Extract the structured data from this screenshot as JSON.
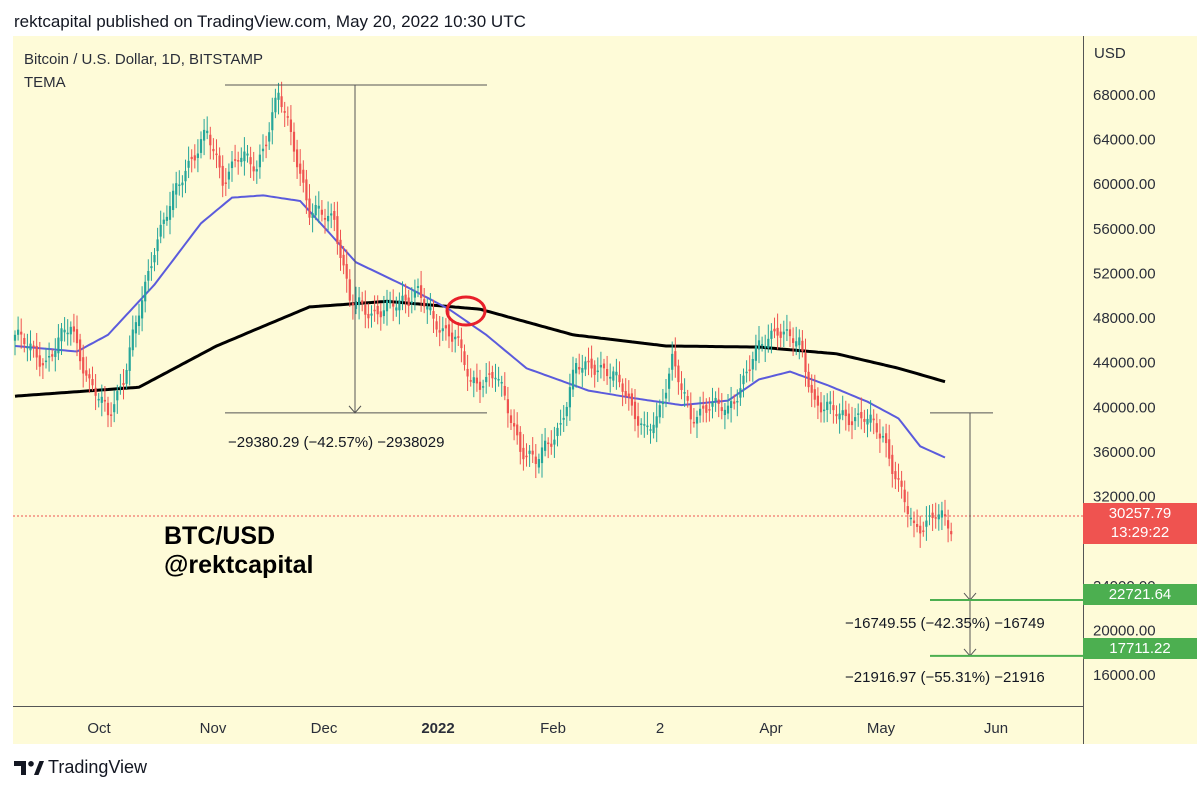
{
  "header": {
    "published": "rektcapital published on TradingView.com, May 20, 2022 10:30 UTC"
  },
  "chart": {
    "symbol": "Bitcoin / U.S. Dollar, 1D, BITSTAMP",
    "indicator": "TEMA",
    "currency": "USD",
    "watermark_line1": "BTC/USD",
    "watermark_line2": "@rektcapital",
    "current_price": "30257.79",
    "countdown": "13:29:22",
    "target1": "22721.64",
    "target2": "17711.22",
    "annotation_top": "−29380.29 (−42.57%) −2938029",
    "annotation_mid": "−16749.55 (−42.35%) −16749",
    "annotation_bottom": "−21916.97 (−55.31%) −21916"
  },
  "colors": {
    "background": "#fefbd8",
    "up": "#26a69a",
    "down": "#ef5350",
    "ema_fast": "#5b5bdc",
    "ema_slow": "#000000",
    "target": "#4caf50",
    "circle": "#e8202a"
  },
  "footer": {
    "brand": "TradingView"
  },
  "chart_data": {
    "type": "candlestick",
    "x_ticks": [
      "Oct",
      "Nov",
      "Dec",
      "2022",
      "Feb",
      "2",
      "Apr",
      "May",
      "Jun"
    ],
    "y_ticks": [
      "68000.00",
      "64000.00",
      "60000.00",
      "56000.00",
      "52000.00",
      "48000.00",
      "44000.00",
      "40000.00",
      "36000.00",
      "32000.00",
      "24000.00",
      "20000.00",
      "16000.00"
    ],
    "ylim": [
      14000,
      71000
    ],
    "price_path": [
      [
        0,
        46500
      ],
      [
        10,
        44000
      ],
      [
        18,
        47500
      ],
      [
        24,
        42000
      ],
      [
        30,
        39500
      ],
      [
        35,
        42500
      ],
      [
        45,
        54500
      ],
      [
        55,
        61500
      ],
      [
        62,
        64500
      ],
      [
        67,
        60500
      ],
      [
        72,
        62500
      ],
      [
        78,
        61500
      ],
      [
        85,
        68000
      ],
      [
        90,
        63500
      ],
      [
        95,
        57500
      ],
      [
        103,
        57000
      ],
      [
        108,
        49500
      ],
      [
        115,
        48500
      ],
      [
        122,
        49000
      ],
      [
        130,
        50500
      ],
      [
        135,
        47500
      ],
      [
        142,
        46500
      ],
      [
        147,
        42000
      ],
      [
        155,
        43000
      ],
      [
        163,
        36500
      ],
      [
        168,
        35000
      ],
      [
        176,
        38500
      ],
      [
        181,
        43500
      ],
      [
        186,
        44000
      ],
      [
        196,
        42000
      ],
      [
        203,
        37700
      ],
      [
        207,
        38700
      ],
      [
        212,
        44500
      ],
      [
        218,
        38800
      ],
      [
        224,
        40500
      ],
      [
        230,
        39500
      ],
      [
        238,
        44500
      ],
      [
        246,
        47200
      ],
      [
        253,
        45500
      ],
      [
        258,
        40500
      ],
      [
        266,
        39300
      ],
      [
        274,
        39000
      ],
      [
        280,
        37500
      ],
      [
        285,
        33000
      ],
      [
        290,
        29000
      ],
      [
        297,
        30500
      ],
      [
        302,
        29000
      ]
    ],
    "ema_fast": [
      [
        0,
        45500
      ],
      [
        20,
        45000
      ],
      [
        30,
        46500
      ],
      [
        45,
        51000
      ],
      [
        60,
        56500
      ],
      [
        70,
        58800
      ],
      [
        80,
        59000
      ],
      [
        92,
        58500
      ],
      [
        110,
        53000
      ],
      [
        125,
        51000
      ],
      [
        140,
        48800
      ],
      [
        152,
        46500
      ],
      [
        165,
        43500
      ],
      [
        185,
        41500
      ],
      [
        200,
        40800
      ],
      [
        215,
        40200
      ],
      [
        230,
        40600
      ],
      [
        240,
        42500
      ],
      [
        250,
        43200
      ],
      [
        262,
        42000
      ],
      [
        275,
        40500
      ],
      [
        285,
        39000
      ],
      [
        292,
        36500
      ],
      [
        300,
        35500
      ]
    ],
    "ema_slow": [
      [
        0,
        41000
      ],
      [
        40,
        41800
      ],
      [
        65,
        45500
      ],
      [
        95,
        49000
      ],
      [
        120,
        49500
      ],
      [
        150,
        48800
      ],
      [
        180,
        46500
      ],
      [
        210,
        45500
      ],
      [
        240,
        45400
      ],
      [
        265,
        44800
      ],
      [
        285,
        43500
      ],
      [
        300,
        42300
      ]
    ],
    "measures": [
      {
        "from": 68000,
        "to": 39500,
        "change": -29380.29,
        "change_pct": -42.57
      },
      {
        "from": 39500,
        "to": 22721.64,
        "change": -16749.55,
        "change_pct": -42.35
      },
      {
        "from": 39500,
        "to": 17711.22,
        "change": -21916.97,
        "change_pct": -55.31
      }
    ]
  }
}
